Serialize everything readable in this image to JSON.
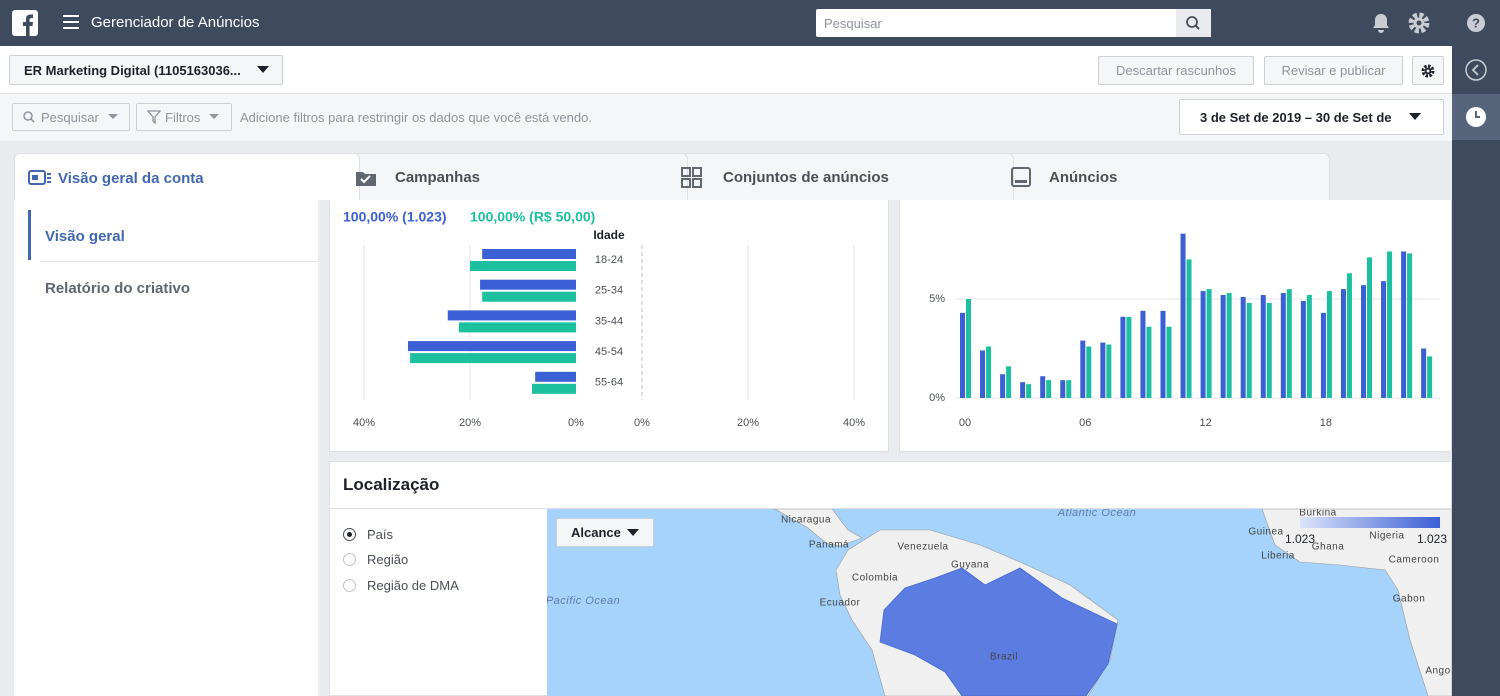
{
  "topbar": {
    "title": "Gerenciador de Anúncios",
    "search_placeholder": "Pesquisar"
  },
  "account": {
    "name": "ER Marketing Digital (1105163036...",
    "discard": "Descartar rascunhos",
    "publish": "Revisar e publicar"
  },
  "filterbar": {
    "search": "Pesquisar",
    "filters": "Filtros",
    "hint": "Adicione filtros para restringir os dados que você está vendo.",
    "date_range": "3 de Set de 2019 – 30 de Set de"
  },
  "tabs": [
    "Visão geral da conta",
    "Campanhas",
    "Conjuntos de anúncios",
    "Anúncios"
  ],
  "sidebar": [
    "Visão geral",
    "Relatório do criativo"
  ],
  "age_chart": {
    "type": "bar",
    "summary_left": "100,00% (1.023)",
    "summary_right": "100,00% (R$ 50,00)",
    "axis_title": "Idade",
    "categories": [
      "18-24",
      "25-34",
      "35-44",
      "45-54",
      "55-64"
    ],
    "series": [
      {
        "color": "#3b5fd4",
        "values": [
          17.7,
          18.1,
          24.2,
          31.7,
          7.7
        ]
      },
      {
        "color": "#1cbf9e",
        "values": [
          20.0,
          17.7,
          22.1,
          31.3,
          8.3
        ]
      }
    ],
    "xlim": [
      0,
      40
    ],
    "xticks": [
      {
        "value": 40,
        "label": "40%"
      },
      {
        "value": 20,
        "label": "20%"
      },
      {
        "value": 0,
        "label": "0%"
      }
    ],
    "x2ticks": [
      {
        "value": 0,
        "label": "0%"
      },
      {
        "value": 20,
        "label": "20%"
      },
      {
        "value": 40,
        "label": "40%"
      }
    ],
    "grid": true
  },
  "hour_chart": {
    "type": "bar",
    "categories": [
      "00",
      null,
      null,
      null,
      null,
      null,
      "06",
      null,
      null,
      null,
      null,
      null,
      "12",
      null,
      null,
      null,
      null,
      null,
      "18",
      null,
      null,
      null,
      null,
      null
    ],
    "series": [
      {
        "color": "#3b5fd4",
        "values": [
          4.3,
          2.4,
          1.2,
          0.8,
          1.1,
          0.9,
          2.9,
          2.8,
          4.1,
          4.4,
          4.4,
          8.3,
          5.4,
          5.2,
          5.1,
          5.2,
          5.3,
          4.9,
          4.3,
          5.5,
          5.7,
          5.9,
          7.4,
          2.5
        ]
      },
      {
        "color": "#1cbf9e",
        "values": [
          5.0,
          2.6,
          1.6,
          0.7,
          0.9,
          0.9,
          2.6,
          2.7,
          4.1,
          3.6,
          3.6,
          7.0,
          5.5,
          5.3,
          4.8,
          4.8,
          5.5,
          5.2,
          5.4,
          6.3,
          7.1,
          7.4,
          7.3,
          2.1
        ]
      }
    ],
    "ylim": [
      0,
      9.5
    ],
    "yticks": [
      {
        "value": 0,
        "label": "0%"
      },
      {
        "value": 5,
        "label": "5%"
      }
    ],
    "grid": true
  },
  "location": {
    "title": "Localização",
    "options": [
      "País",
      "Região",
      "Região de DMA"
    ],
    "metric": "Alcance",
    "legend_min": "1.023",
    "legend_max": "1.023",
    "map_labels": [
      "Nicaragua",
      "Panamá",
      "Venezuela",
      "Guyana",
      "Colombia",
      "Ecuador",
      "Pacific Ocean",
      "Brazil",
      "Atlantic Ocean",
      "Burkina",
      "Guinea",
      "Ghana",
      "Nigeria",
      "Liberia",
      "Cameroon",
      "Gabon",
      "Ango"
    ]
  }
}
